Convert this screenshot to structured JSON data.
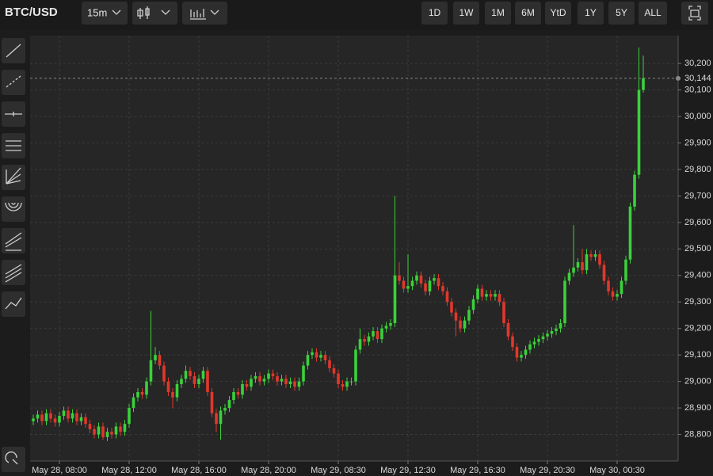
{
  "toolbar": {
    "symbol": "BTC/USD",
    "interval": "15m",
    "ranges": [
      "1D",
      "1W",
      "1M",
      "6M",
      "YtD",
      "1Y",
      "5Y",
      "ALL"
    ]
  },
  "chart_data": {
    "type": "candlestick",
    "up_color": "#3ad13a",
    "down_color": "#e0382c",
    "grid": true,
    "categories": [
      null,
      null,
      null,
      null,
      null,
      null,
      "May 28, 08:00",
      null,
      null,
      null,
      null,
      null,
      null,
      null,
      null,
      null,
      null,
      null,
      null,
      null,
      null,
      null,
      "May 28, 12:00",
      null,
      null,
      null,
      null,
      null,
      null,
      null,
      null,
      null,
      null,
      null,
      null,
      null,
      null,
      null,
      "May 28, 16:00",
      null,
      null,
      null,
      null,
      null,
      null,
      null,
      null,
      null,
      null,
      null,
      null,
      null,
      null,
      null,
      "May 28, 20:00",
      null,
      null,
      null,
      null,
      null,
      null,
      null,
      null,
      null,
      null,
      null,
      null,
      null,
      null,
      null,
      "May 29, 08:30",
      null,
      null,
      null,
      null,
      null,
      null,
      null,
      null,
      null,
      null,
      null,
      null,
      null,
      null,
      null,
      "May 29, 12:30",
      null,
      null,
      null,
      null,
      null,
      null,
      null,
      null,
      null,
      null,
      null,
      null,
      null,
      null,
      null,
      "May 29, 16:30",
      null,
      null,
      null,
      null,
      null,
      null,
      null,
      null,
      null,
      null,
      null,
      null,
      null,
      null,
      null,
      "May 29, 20:30",
      null,
      null,
      null,
      null,
      null,
      null,
      null,
      null,
      null,
      null,
      null,
      null,
      null,
      null,
      null,
      "May 30, 00:30",
      null,
      null,
      null,
      null,
      null,
      null
    ],
    "ohlc": [
      [
        28850,
        28875,
        28835,
        28860
      ],
      [
        28860,
        28890,
        28845,
        28875
      ],
      [
        28875,
        28890,
        28835,
        28850
      ],
      [
        28850,
        28895,
        28835,
        28880
      ],
      [
        28880,
        28895,
        28845,
        28860
      ],
      [
        28860,
        28875,
        28830,
        28845
      ],
      [
        28845,
        28885,
        28830,
        28870
      ],
      [
        28870,
        28905,
        28855,
        28890
      ],
      [
        28890,
        28905,
        28845,
        28860
      ],
      [
        28860,
        28895,
        28845,
        28880
      ],
      [
        28880,
        28895,
        28835,
        28850
      ],
      [
        28850,
        28880,
        28835,
        28865
      ],
      [
        28865,
        28880,
        28825,
        28840
      ],
      [
        28840,
        28855,
        28805,
        28820
      ],
      [
        28820,
        28835,
        28785,
        28800
      ],
      [
        28800,
        28845,
        28785,
        28830
      ],
      [
        28830,
        28845,
        28780,
        28790
      ],
      [
        28790,
        28825,
        28775,
        28810
      ],
      [
        28810,
        28825,
        28785,
        28800
      ],
      [
        28800,
        28845,
        28785,
        28830
      ],
      [
        28830,
        28845,
        28795,
        28810
      ],
      [
        28810,
        28855,
        28795,
        28840
      ],
      [
        28840,
        28915,
        28825,
        28900
      ],
      [
        28900,
        28955,
        28885,
        28940
      ],
      [
        28940,
        28975,
        28925,
        28960
      ],
      [
        28960,
        28975,
        28935,
        28950
      ],
      [
        28950,
        29015,
        28935,
        29000
      ],
      [
        29000,
        29266,
        28985,
        29080
      ],
      [
        29080,
        29130,
        29065,
        29100
      ],
      [
        29100,
        29115,
        29045,
        29060
      ],
      [
        29060,
        29075,
        28985,
        29000
      ],
      [
        29000,
        29015,
        28945,
        28960
      ],
      [
        28960,
        28975,
        28900,
        28940
      ],
      [
        28940,
        29005,
        28925,
        28990
      ],
      [
        28990,
        29025,
        28975,
        29010
      ],
      [
        29010,
        29060,
        28995,
        29040
      ],
      [
        29040,
        29055,
        29005,
        29020
      ],
      [
        29020,
        29035,
        28975,
        28990
      ],
      [
        28990,
        29025,
        28975,
        29010
      ],
      [
        29010,
        29055,
        28995,
        29040
      ],
      [
        29040,
        29055,
        28945,
        28960
      ],
      [
        28960,
        28975,
        28865,
        28880
      ],
      [
        28880,
        28895,
        28810,
        28840
      ],
      [
        28840,
        28905,
        28780,
        28890
      ],
      [
        28890,
        28915,
        28875,
        28900
      ],
      [
        28900,
        28945,
        28885,
        28930
      ],
      [
        28930,
        28975,
        28915,
        28960
      ],
      [
        28960,
        28975,
        28935,
        28950
      ],
      [
        28950,
        29005,
        28935,
        28990
      ],
      [
        28990,
        29005,
        28965,
        28980
      ],
      [
        28980,
        29025,
        28965,
        29010
      ],
      [
        29010,
        29035,
        28995,
        29020
      ],
      [
        29020,
        29035,
        28985,
        29000
      ],
      [
        29000,
        29025,
        28985,
        29010
      ],
      [
        29010,
        29045,
        28995,
        29030
      ],
      [
        29030,
        29045,
        29005,
        29020
      ],
      [
        29020,
        29035,
        28985,
        29000
      ],
      [
        29000,
        29025,
        28985,
        29010
      ],
      [
        29010,
        29025,
        28975,
        28990
      ],
      [
        28990,
        29015,
        28975,
        29000
      ],
      [
        29000,
        29015,
        28965,
        28980
      ],
      [
        28980,
        29015,
        28965,
        29000
      ],
      [
        29000,
        29075,
        28985,
        29060
      ],
      [
        29060,
        29115,
        29045,
        29100
      ],
      [
        29100,
        29125,
        29085,
        29110
      ],
      [
        29110,
        29125,
        29075,
        29090
      ],
      [
        29090,
        29115,
        29075,
        29100
      ],
      [
        29100,
        29115,
        29065,
        29080
      ],
      [
        29080,
        29095,
        29035,
        29050
      ],
      [
        29050,
        29065,
        29015,
        29030
      ],
      [
        29030,
        29045,
        28975,
        28990
      ],
      [
        28990,
        29005,
        28965,
        28980
      ],
      [
        28980,
        29015,
        28965,
        29000
      ],
      [
        29000,
        29015,
        28985,
        29000
      ],
      [
        29000,
        29135,
        28985,
        29120
      ],
      [
        29120,
        29200,
        29105,
        29160
      ],
      [
        29160,
        29175,
        29135,
        29150
      ],
      [
        29150,
        29185,
        29135,
        29170
      ],
      [
        29170,
        29205,
        29155,
        29190
      ],
      [
        29190,
        29205,
        29145,
        29160
      ],
      [
        29160,
        29215,
        29145,
        29200
      ],
      [
        29200,
        29225,
        29185,
        29210
      ],
      [
        29210,
        29235,
        29195,
        29220
      ],
      [
        29220,
        29700,
        29205,
        29400
      ],
      [
        29400,
        29450,
        29365,
        29380
      ],
      [
        29380,
        29395,
        29335,
        29350
      ],
      [
        29350,
        29480,
        29335,
        29360
      ],
      [
        29360,
        29395,
        29345,
        29380
      ],
      [
        29380,
        29415,
        29365,
        29400
      ],
      [
        29400,
        29415,
        29355,
        29370
      ],
      [
        29370,
        29385,
        29325,
        29340
      ],
      [
        29340,
        29395,
        29325,
        29380
      ],
      [
        29380,
        29405,
        29365,
        29390
      ],
      [
        29390,
        29405,
        29345,
        29360
      ],
      [
        29360,
        29375,
        29325,
        29340
      ],
      [
        29340,
        29355,
        29285,
        29300
      ],
      [
        29300,
        29315,
        29245,
        29260
      ],
      [
        29260,
        29275,
        29170,
        29230
      ],
      [
        29230,
        29245,
        29185,
        29200
      ],
      [
        29200,
        29245,
        29185,
        29230
      ],
      [
        29230,
        29285,
        29215,
        29270
      ],
      [
        29270,
        29325,
        29255,
        29310
      ],
      [
        29310,
        29365,
        29295,
        29350
      ],
      [
        29350,
        29365,
        29305,
        29320
      ],
      [
        29320,
        29345,
        29305,
        29330
      ],
      [
        29330,
        29345,
        29305,
        29320
      ],
      [
        29320,
        29345,
        29305,
        29330
      ],
      [
        29330,
        29345,
        29285,
        29300
      ],
      [
        29300,
        29315,
        29205,
        29220
      ],
      [
        29220,
        29235,
        29155,
        29170
      ],
      [
        29170,
        29185,
        29115,
        29130
      ],
      [
        29130,
        29145,
        29075,
        29090
      ],
      [
        29090,
        29115,
        29075,
        29100
      ],
      [
        29100,
        29135,
        29085,
        29120
      ],
      [
        29120,
        29155,
        29105,
        29140
      ],
      [
        29140,
        29165,
        29125,
        29150
      ],
      [
        29150,
        29175,
        29135,
        29160
      ],
      [
        29160,
        29185,
        29145,
        29170
      ],
      [
        29170,
        29195,
        29155,
        29180
      ],
      [
        29180,
        29205,
        29165,
        29190
      ],
      [
        29190,
        29215,
        29175,
        29200
      ],
      [
        29200,
        29235,
        29185,
        29220
      ],
      [
        29220,
        29395,
        29205,
        29380
      ],
      [
        29380,
        29425,
        29365,
        29410
      ],
      [
        29410,
        29590,
        29395,
        29430
      ],
      [
        29430,
        29465,
        29415,
        29450
      ],
      [
        29450,
        29500,
        29405,
        29420
      ],
      [
        29420,
        29500,
        29405,
        29480
      ],
      [
        29480,
        29495,
        29455,
        29470
      ],
      [
        29470,
        29495,
        29455,
        29480
      ],
      [
        29480,
        29495,
        29425,
        29440
      ],
      [
        29440,
        29455,
        29365,
        29380
      ],
      [
        29380,
        29395,
        29325,
        29340
      ],
      [
        29340,
        29355,
        29305,
        29320
      ],
      [
        29320,
        29345,
        29305,
        29330
      ],
      [
        29330,
        29395,
        29315,
        29380
      ],
      [
        29380,
        29475,
        29365,
        29460
      ],
      [
        29460,
        29675,
        29445,
        29660
      ],
      [
        29660,
        29795,
        29645,
        29780
      ],
      [
        29780,
        30260,
        29765,
        30100
      ],
      [
        30100,
        30230,
        30090,
        30144
      ]
    ],
    "ylim": [
      28700,
      30305
    ],
    "yticks": [
      {
        "value": 28800,
        "label": "28,800"
      },
      {
        "value": 28900,
        "label": "28,900"
      },
      {
        "value": 29000,
        "label": "29,000"
      },
      {
        "value": 29100,
        "label": "29,100"
      },
      {
        "value": 29200,
        "label": "29,200"
      },
      {
        "value": 29300,
        "label": "29,300"
      },
      {
        "value": 29400,
        "label": "29,400"
      },
      {
        "value": 29500,
        "label": "29,500"
      },
      {
        "value": 29600,
        "label": "29,600"
      },
      {
        "value": 29700,
        "label": "29,700"
      },
      {
        "value": 29800,
        "label": "29,800"
      },
      {
        "value": 29900,
        "label": "29,900"
      },
      {
        "value": 30000,
        "label": "30,000"
      },
      {
        "value": 30100,
        "label": "30,100"
      },
      {
        "value": 30200,
        "label": "30,200"
      }
    ],
    "last_price": {
      "value": 30144,
      "label": "30,144"
    }
  }
}
